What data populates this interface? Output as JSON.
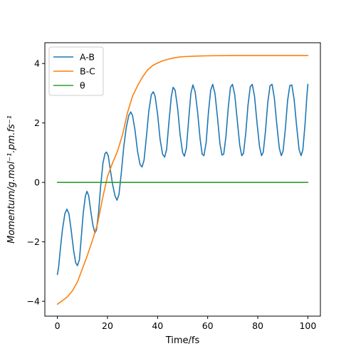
{
  "chart_data": {
    "type": "line",
    "title": "",
    "xlabel": "Time/fs",
    "ylabel": "Momentum/g.mol⁻¹.pm.fs⁻¹",
    "xlim": [
      -5,
      105
    ],
    "ylim": [
      -4.5,
      4.7
    ],
    "x_ticks": [
      0,
      20,
      40,
      60,
      80,
      100
    ],
    "y_ticks": [
      -4,
      -2,
      0,
      2,
      4
    ],
    "grid": false,
    "legend_position": "top-left",
    "series": [
      {
        "name": "A-B",
        "color": "#1f77b4",
        "points": [
          [
            0,
            -3.1
          ],
          [
            0.5,
            -2.85
          ],
          [
            1,
            -2.4
          ],
          [
            2,
            -1.6
          ],
          [
            3,
            -1.05
          ],
          [
            3.8,
            -0.9
          ],
          [
            4.6,
            -1.05
          ],
          [
            5.5,
            -1.6
          ],
          [
            6.5,
            -2.3
          ],
          [
            7.3,
            -2.7
          ],
          [
            8,
            -2.8
          ],
          [
            8.8,
            -2.6
          ],
          [
            9.5,
            -1.9
          ],
          [
            10.3,
            -1.05
          ],
          [
            11.2,
            -0.45
          ],
          [
            11.8,
            -0.3
          ],
          [
            12.5,
            -0.45
          ],
          [
            13.3,
            -0.95
          ],
          [
            14.2,
            -1.45
          ],
          [
            15,
            -1.7
          ],
          [
            15.6,
            -1.6
          ],
          [
            16.4,
            -1.05
          ],
          [
            17.3,
            -0.1
          ],
          [
            18.2,
            0.65
          ],
          [
            19,
            0.97
          ],
          [
            19.6,
            1.02
          ],
          [
            20.3,
            0.9
          ],
          [
            21,
            0.5
          ],
          [
            22,
            -0.05
          ],
          [
            23,
            -0.45
          ],
          [
            23.8,
            -0.6
          ],
          [
            24.6,
            -0.4
          ],
          [
            25.5,
            0.3
          ],
          [
            26.5,
            1.2
          ],
          [
            27.5,
            1.85
          ],
          [
            28.5,
            2.25
          ],
          [
            29.3,
            2.37
          ],
          [
            30,
            2.25
          ],
          [
            31,
            1.75
          ],
          [
            32,
            1.05
          ],
          [
            33,
            0.6
          ],
          [
            33.8,
            0.52
          ],
          [
            34.6,
            0.75
          ],
          [
            35.5,
            1.5
          ],
          [
            36.5,
            2.4
          ],
          [
            37.5,
            2.95
          ],
          [
            38.3,
            3.05
          ],
          [
            39,
            2.9
          ],
          [
            40,
            2.3
          ],
          [
            41,
            1.45
          ],
          [
            42,
            0.95
          ],
          [
            42.8,
            0.85
          ],
          [
            43.6,
            1.1
          ],
          [
            44.5,
            2.0
          ],
          [
            45.5,
            2.9
          ],
          [
            46.2,
            3.2
          ],
          [
            47,
            3.1
          ],
          [
            48,
            2.5
          ],
          [
            49,
            1.6
          ],
          [
            50,
            1.0
          ],
          [
            50.7,
            0.88
          ],
          [
            51.5,
            1.15
          ],
          [
            52.4,
            2.1
          ],
          [
            53.3,
            3.0
          ],
          [
            54.1,
            3.28
          ],
          [
            55,
            3.05
          ],
          [
            56,
            2.35
          ],
          [
            57,
            1.45
          ],
          [
            57.8,
            0.95
          ],
          [
            58.5,
            0.9
          ],
          [
            59.4,
            1.35
          ],
          [
            60.3,
            2.35
          ],
          [
            61.2,
            3.1
          ],
          [
            62,
            3.3
          ],
          [
            62.9,
            3.0
          ],
          [
            63.9,
            2.2
          ],
          [
            64.9,
            1.3
          ],
          [
            65.7,
            0.92
          ],
          [
            66.4,
            0.95
          ],
          [
            67.3,
            1.55
          ],
          [
            68.2,
            2.5
          ],
          [
            69.1,
            3.2
          ],
          [
            69.9,
            3.3
          ],
          [
            70.8,
            2.95
          ],
          [
            71.8,
            2.1
          ],
          [
            72.8,
            1.25
          ],
          [
            73.6,
            0.9
          ],
          [
            74.3,
            0.98
          ],
          [
            75.2,
            1.65
          ],
          [
            76.1,
            2.6
          ],
          [
            77,
            3.22
          ],
          [
            77.8,
            3.3
          ],
          [
            78.7,
            2.9
          ],
          [
            79.7,
            2.0
          ],
          [
            80.7,
            1.2
          ],
          [
            81.5,
            0.9
          ],
          [
            82.2,
            1.02
          ],
          [
            83.1,
            1.75
          ],
          [
            84,
            2.7
          ],
          [
            84.9,
            3.25
          ],
          [
            85.7,
            3.3
          ],
          [
            86.6,
            2.85
          ],
          [
            87.6,
            1.95
          ],
          [
            88.6,
            1.15
          ],
          [
            89.4,
            0.9
          ],
          [
            90.1,
            1.05
          ],
          [
            91,
            1.8
          ],
          [
            91.9,
            2.75
          ],
          [
            92.8,
            3.26
          ],
          [
            93.6,
            3.28
          ],
          [
            94.5,
            2.8
          ],
          [
            95.5,
            1.9
          ],
          [
            96.5,
            1.1
          ],
          [
            97.3,
            0.9
          ],
          [
            98,
            1.1
          ],
          [
            98.9,
            2.0
          ],
          [
            99.6,
            2.9
          ],
          [
            100,
            3.3
          ]
        ]
      },
      {
        "name": "B-C",
        "color": "#ff7f0e",
        "points": [
          [
            0,
            -4.1
          ],
          [
            2,
            -3.98
          ],
          [
            4,
            -3.85
          ],
          [
            6,
            -3.65
          ],
          [
            8,
            -3.35
          ],
          [
            10,
            -2.9
          ],
          [
            12,
            -2.45
          ],
          [
            14,
            -1.95
          ],
          [
            16,
            -1.4
          ],
          [
            18,
            -0.55
          ],
          [
            20,
            0.2
          ],
          [
            22,
            0.65
          ],
          [
            24,
            1.05
          ],
          [
            26,
            1.6
          ],
          [
            28,
            2.35
          ],
          [
            30,
            2.9
          ],
          [
            32,
            3.25
          ],
          [
            34,
            3.55
          ],
          [
            36,
            3.78
          ],
          [
            38,
            3.93
          ],
          [
            40,
            4.02
          ],
          [
            42,
            4.09
          ],
          [
            44,
            4.14
          ],
          [
            46,
            4.18
          ],
          [
            48,
            4.21
          ],
          [
            50,
            4.23
          ],
          [
            55,
            4.25
          ],
          [
            60,
            4.26
          ],
          [
            70,
            4.27
          ],
          [
            80,
            4.27
          ],
          [
            90,
            4.27
          ],
          [
            100,
            4.27
          ]
        ]
      },
      {
        "name": "θ",
        "color": "#2ca02c",
        "points": [
          [
            0,
            0
          ],
          [
            100,
            0
          ]
        ]
      }
    ]
  }
}
